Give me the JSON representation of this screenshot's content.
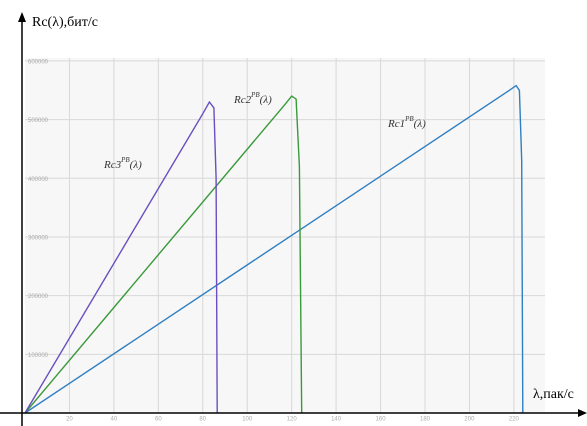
{
  "chart_data": {
    "type": "line",
    "y_label": "Rc(λ),бит/с",
    "x_label": "λ,пак/с",
    "xlim": [
      0,
      234
    ],
    "xticks": [
      20,
      40,
      60,
      80,
      100,
      120,
      140,
      160,
      180,
      200,
      220
    ],
    "ylim": [
      0,
      605000
    ],
    "yticks": [
      100000,
      200000,
      300000,
      400000,
      500000,
      600000
    ],
    "grid": true,
    "series": [
      {
        "name": "Rc1",
        "color": "#2f7fc1",
        "x": [
          0,
          218,
          221,
          222.5,
          223.5,
          224
        ],
        "values": [
          0,
          550000,
          558000,
          550000,
          430000,
          0
        ]
      },
      {
        "name": "Rc2",
        "color": "#3a9a3a",
        "x": [
          0,
          117,
          120,
          122,
          123.5,
          124.5
        ],
        "values": [
          0,
          526000,
          540000,
          535000,
          420000,
          0
        ]
      },
      {
        "name": "Rc3",
        "color": "#6a4fc0",
        "x": [
          0,
          80,
          83,
          85,
          86,
          86.5
        ],
        "values": [
          0,
          510000,
          530000,
          520000,
          400000,
          0
        ]
      }
    ],
    "annotations": [
      {
        "base": "Rc1",
        "sup": "PB",
        "tail": "(λ)"
      },
      {
        "base": "Rc2",
        "sup": "PB",
        "tail": "(λ)"
      },
      {
        "base": "Rc3",
        "sup": "PB",
        "tail": "(λ)"
      }
    ]
  }
}
